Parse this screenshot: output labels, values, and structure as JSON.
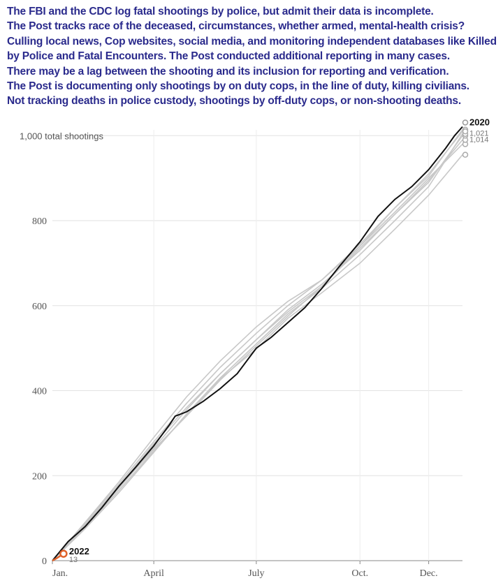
{
  "notes": [
    "The FBI and the CDC log fatal shootings by police, but admit their data is incomplete.",
    "The Post tracks race of the deceased, circumstances, whether armed, mental-health crisis?",
    "Culling local news, Cop websites, social media, and monitoring independent databases like Killed by Police and Fatal Encounters. The Post conducted additional reporting in many cases.",
    "There may be a lag between the shooting and its inclusion for reporting and verification.",
    "The Post is documenting only shootings by on duty cops, in the line of duty, killing civilians.",
    "Not tracking deaths in police custody, shootings by off-duty cops, or non-shooting deaths."
  ],
  "colors": {
    "text": "#2a2a8c",
    "highlight": "#111111",
    "other_years": "#c8c8c8",
    "current_year": "#e0622a"
  },
  "chart_data": {
    "type": "line",
    "x_unit": "day of year",
    "ylim": [
      0,
      1030
    ],
    "y_ticks": [
      {
        "value": 0,
        "label": "0"
      },
      {
        "value": 200,
        "label": "200"
      },
      {
        "value": 400,
        "label": "400"
      },
      {
        "value": 600,
        "label": "600"
      },
      {
        "value": 800,
        "label": "800"
      },
      {
        "value": 1000,
        "label": "1,000 total shootings"
      }
    ],
    "x_ticks": [
      {
        "day": 1,
        "label": "Jan."
      },
      {
        "day": 91,
        "label": "April"
      },
      {
        "day": 182,
        "label": "July"
      },
      {
        "day": 274,
        "label": "Oct."
      },
      {
        "day": 335,
        "label": "Dec."
      }
    ],
    "grid": true,
    "highlight_series": {
      "name": "2020",
      "points": [
        [
          1,
          0
        ],
        [
          15,
          45
        ],
        [
          30,
          80
        ],
        [
          45,
          125
        ],
        [
          60,
          175
        ],
        [
          75,
          220
        ],
        [
          91,
          270
        ],
        [
          105,
          320
        ],
        [
          110,
          340
        ],
        [
          120,
          350
        ],
        [
          135,
          375
        ],
        [
          150,
          405
        ],
        [
          165,
          440
        ],
        [
          182,
          500
        ],
        [
          195,
          525
        ],
        [
          210,
          560
        ],
        [
          225,
          595
        ],
        [
          240,
          640
        ],
        [
          255,
          690
        ],
        [
          274,
          750
        ],
        [
          290,
          810
        ],
        [
          305,
          850
        ],
        [
          320,
          880
        ],
        [
          335,
          920
        ],
        [
          350,
          970
        ],
        [
          358,
          1000
        ],
        [
          365,
          1021
        ]
      ]
    },
    "other_series": [
      {
        "points": [
          [
            1,
            0
          ],
          [
            30,
            90
          ],
          [
            60,
            185
          ],
          [
            91,
            290
          ],
          [
            120,
            385
          ],
          [
            150,
            470
          ],
          [
            182,
            550
          ],
          [
            210,
            610
          ],
          [
            240,
            660
          ],
          [
            274,
            740
          ],
          [
            305,
            820
          ],
          [
            335,
            900
          ],
          [
            365,
            980
          ]
        ]
      },
      {
        "points": [
          [
            1,
            0
          ],
          [
            30,
            85
          ],
          [
            60,
            175
          ],
          [
            91,
            275
          ],
          [
            120,
            360
          ],
          [
            150,
            440
          ],
          [
            182,
            520
          ],
          [
            210,
            590
          ],
          [
            240,
            650
          ],
          [
            274,
            730
          ],
          [
            305,
            815
          ],
          [
            335,
            895
          ],
          [
            365,
            990
          ]
        ]
      },
      {
        "points": [
          [
            1,
            0
          ],
          [
            30,
            80
          ],
          [
            60,
            170
          ],
          [
            91,
            265
          ],
          [
            120,
            355
          ],
          [
            150,
            440
          ],
          [
            182,
            520
          ],
          [
            210,
            585
          ],
          [
            240,
            645
          ],
          [
            274,
            735
          ],
          [
            305,
            815
          ],
          [
            335,
            890
          ],
          [
            365,
            1000
          ]
        ]
      },
      {
        "points": [
          [
            1,
            0
          ],
          [
            30,
            75
          ],
          [
            60,
            160
          ],
          [
            91,
            255
          ],
          [
            120,
            345
          ],
          [
            150,
            430
          ],
          [
            182,
            510
          ],
          [
            210,
            580
          ],
          [
            240,
            640
          ],
          [
            274,
            720
          ],
          [
            305,
            800
          ],
          [
            335,
            880
          ],
          [
            365,
            1004
          ]
        ]
      },
      {
        "points": [
          [
            1,
            0
          ],
          [
            30,
            82
          ],
          [
            60,
            172
          ],
          [
            91,
            262
          ],
          [
            120,
            340
          ],
          [
            150,
            425
          ],
          [
            182,
            505
          ],
          [
            210,
            575
          ],
          [
            240,
            645
          ],
          [
            274,
            740
          ],
          [
            305,
            830
          ],
          [
            335,
            905
          ],
          [
            365,
            1014
          ]
        ]
      },
      {
        "points": [
          [
            1,
            0
          ],
          [
            30,
            78
          ],
          [
            60,
            165
          ],
          [
            91,
            258
          ],
          [
            120,
            342
          ],
          [
            150,
            428
          ],
          [
            182,
            498
          ],
          [
            210,
            570
          ],
          [
            240,
            630
          ],
          [
            274,
            700
          ],
          [
            305,
            780
          ],
          [
            335,
            860
          ],
          [
            365,
            955
          ]
        ]
      },
      {
        "points": [
          [
            1,
            0
          ],
          [
            30,
            88
          ],
          [
            60,
            180
          ],
          [
            91,
            280
          ],
          [
            120,
            370
          ],
          [
            150,
            455
          ],
          [
            182,
            535
          ],
          [
            210,
            600
          ],
          [
            240,
            660
          ],
          [
            274,
            745
          ],
          [
            305,
            830
          ],
          [
            335,
            910
          ],
          [
            365,
            1010
          ]
        ]
      }
    ],
    "end_labels": [
      "1,021",
      "1,014"
    ],
    "current_series": {
      "name": "2022",
      "points": [
        [
          1,
          0
        ],
        [
          5,
          6
        ],
        [
          9,
          13
        ]
      ],
      "end_label": "13"
    }
  }
}
